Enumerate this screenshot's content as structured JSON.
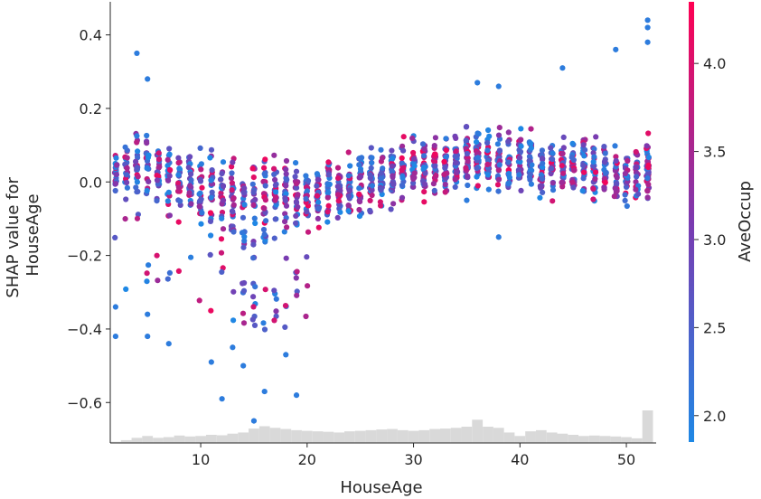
{
  "chart_data": {
    "type": "scatter",
    "title": "",
    "xlabel": "HouseAge",
    "ylabel_lines": [
      "SHAP value for",
      "HouseAge"
    ],
    "xlim": [
      1.5,
      52.8
    ],
    "ylim": [
      -0.71,
      0.49
    ],
    "x_ticks": [
      10,
      20,
      30,
      40,
      50
    ],
    "x_tick_labels": [
      "10",
      "20",
      "30",
      "40",
      "50"
    ],
    "y_ticks": [
      0.4,
      0.2,
      0.0,
      -0.2,
      -0.4,
      -0.6
    ],
    "y_tick_labels": [
      "0.4",
      "0.2",
      "0.0",
      "−0.2",
      "−0.4",
      "−0.6"
    ],
    "grid": false,
    "colorbar": {
      "label": "AveOccup",
      "range": [
        1.85,
        4.35
      ],
      "ticks": [
        2.0,
        2.5,
        3.0,
        3.5,
        4.0
      ],
      "tick_labels": [
        "2.0",
        "2.5",
        "3.0",
        "3.5",
        "4.0"
      ],
      "colormap": [
        "#1e88e5",
        "#7b3ab0",
        "#ff0052"
      ]
    },
    "mean_trend": {
      "x": [
        2,
        3,
        4,
        5,
        6,
        7,
        8,
        9,
        10,
        11,
        12,
        13,
        14,
        15,
        16,
        17,
        18,
        19,
        20,
        21,
        22,
        23,
        24,
        25,
        26,
        27,
        28,
        29,
        30,
        31,
        32,
        33,
        34,
        35,
        36,
        37,
        38,
        39,
        40,
        41,
        42,
        43,
        44,
        45,
        46,
        47,
        48,
        49,
        50,
        51,
        52
      ],
      "y": [
        0.02,
        0.03,
        0.05,
        0.04,
        0.03,
        0.02,
        0.0,
        0.0,
        -0.01,
        -0.02,
        -0.02,
        -0.03,
        -0.04,
        -0.05,
        -0.06,
        -0.05,
        -0.05,
        -0.04,
        -0.03,
        -0.03,
        -0.02,
        -0.02,
        -0.01,
        -0.01,
        0.0,
        0.01,
        0.02,
        0.03,
        0.04,
        0.04,
        0.05,
        0.05,
        0.06,
        0.06,
        0.07,
        0.06,
        0.06,
        0.05,
        0.05,
        0.05,
        0.04,
        0.04,
        0.04,
        0.03,
        0.03,
        0.03,
        0.03,
        0.02,
        0.02,
        0.03,
        0.04
      ]
    },
    "outliers": [
      {
        "x": 2,
        "y": -0.42
      },
      {
        "x": 2,
        "y": -0.34
      },
      {
        "x": 4,
        "y": 0.35
      },
      {
        "x": 5,
        "y": 0.28
      },
      {
        "x": 5,
        "y": -0.42
      },
      {
        "x": 5,
        "y": -0.36
      },
      {
        "x": 7,
        "y": -0.44
      },
      {
        "x": 11,
        "y": -0.49
      },
      {
        "x": 12,
        "y": -0.59
      },
      {
        "x": 13,
        "y": -0.45
      },
      {
        "x": 14,
        "y": -0.5
      },
      {
        "x": 15,
        "y": -0.65
      },
      {
        "x": 16,
        "y": -0.57
      },
      {
        "x": 19,
        "y": -0.58
      },
      {
        "x": 18,
        "y": -0.47
      },
      {
        "x": 36,
        "y": 0.27
      },
      {
        "x": 38,
        "y": 0.26
      },
      {
        "x": 44,
        "y": 0.31
      },
      {
        "x": 49,
        "y": 0.36
      },
      {
        "x": 52,
        "y": 0.44
      },
      {
        "x": 52,
        "y": 0.42
      },
      {
        "x": 52,
        "y": 0.38
      },
      {
        "x": 38,
        "y": -0.15
      },
      {
        "x": 35,
        "y": -0.05
      }
    ],
    "histogram": {
      "x": [
        2,
        3,
        4,
        5,
        6,
        7,
        8,
        9,
        10,
        11,
        12,
        13,
        14,
        15,
        16,
        17,
        18,
        19,
        20,
        21,
        22,
        23,
        24,
        25,
        26,
        27,
        28,
        29,
        30,
        31,
        32,
        33,
        34,
        35,
        36,
        37,
        38,
        39,
        40,
        41,
        42,
        43,
        44,
        45,
        46,
        47,
        48,
        49,
        50,
        51,
        52
      ],
      "counts": [
        0.05,
        0.12,
        0.22,
        0.3,
        0.22,
        0.25,
        0.32,
        0.28,
        0.3,
        0.35,
        0.33,
        0.4,
        0.45,
        0.62,
        0.72,
        0.65,
        0.6,
        0.55,
        0.52,
        0.5,
        0.48,
        0.45,
        0.5,
        0.52,
        0.55,
        0.58,
        0.6,
        0.55,
        0.52,
        0.55,
        0.6,
        0.62,
        0.65,
        0.7,
        1.0,
        0.7,
        0.65,
        0.45,
        0.3,
        0.5,
        0.55,
        0.45,
        0.4,
        0.35,
        0.3,
        0.32,
        0.3,
        0.28,
        0.25,
        0.2,
        1.4
      ]
    }
  }
}
